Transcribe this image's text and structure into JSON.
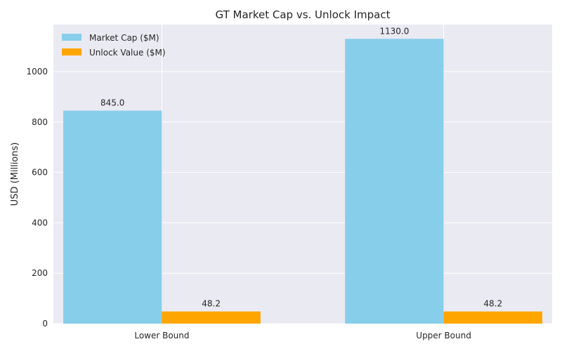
{
  "chart_data": {
    "type": "bar",
    "title": "GT Market Cap vs. Unlock Impact",
    "xlabel": "",
    "ylabel": "USD (Millions)",
    "categories": [
      "Lower Bound",
      "Upper Bound"
    ],
    "series": [
      {
        "name": "Market Cap ($M)",
        "values": [
          845.0,
          1130.0
        ],
        "labels": [
          "845.0",
          "1130.0"
        ],
        "color": "#87ceeb"
      },
      {
        "name": "Unlock Value ($M)",
        "values": [
          48.2,
          48.2
        ],
        "labels": [
          "48.2",
          "48.2"
        ],
        "color": "#ffa500"
      }
    ],
    "ylim": [
      0,
      1186.5
    ],
    "yticks": [
      0,
      200,
      400,
      600,
      800,
      1000
    ],
    "grid": true,
    "legend": "top-left",
    "background": "#eaeaf2",
    "grid_color": "#ffffff"
  }
}
